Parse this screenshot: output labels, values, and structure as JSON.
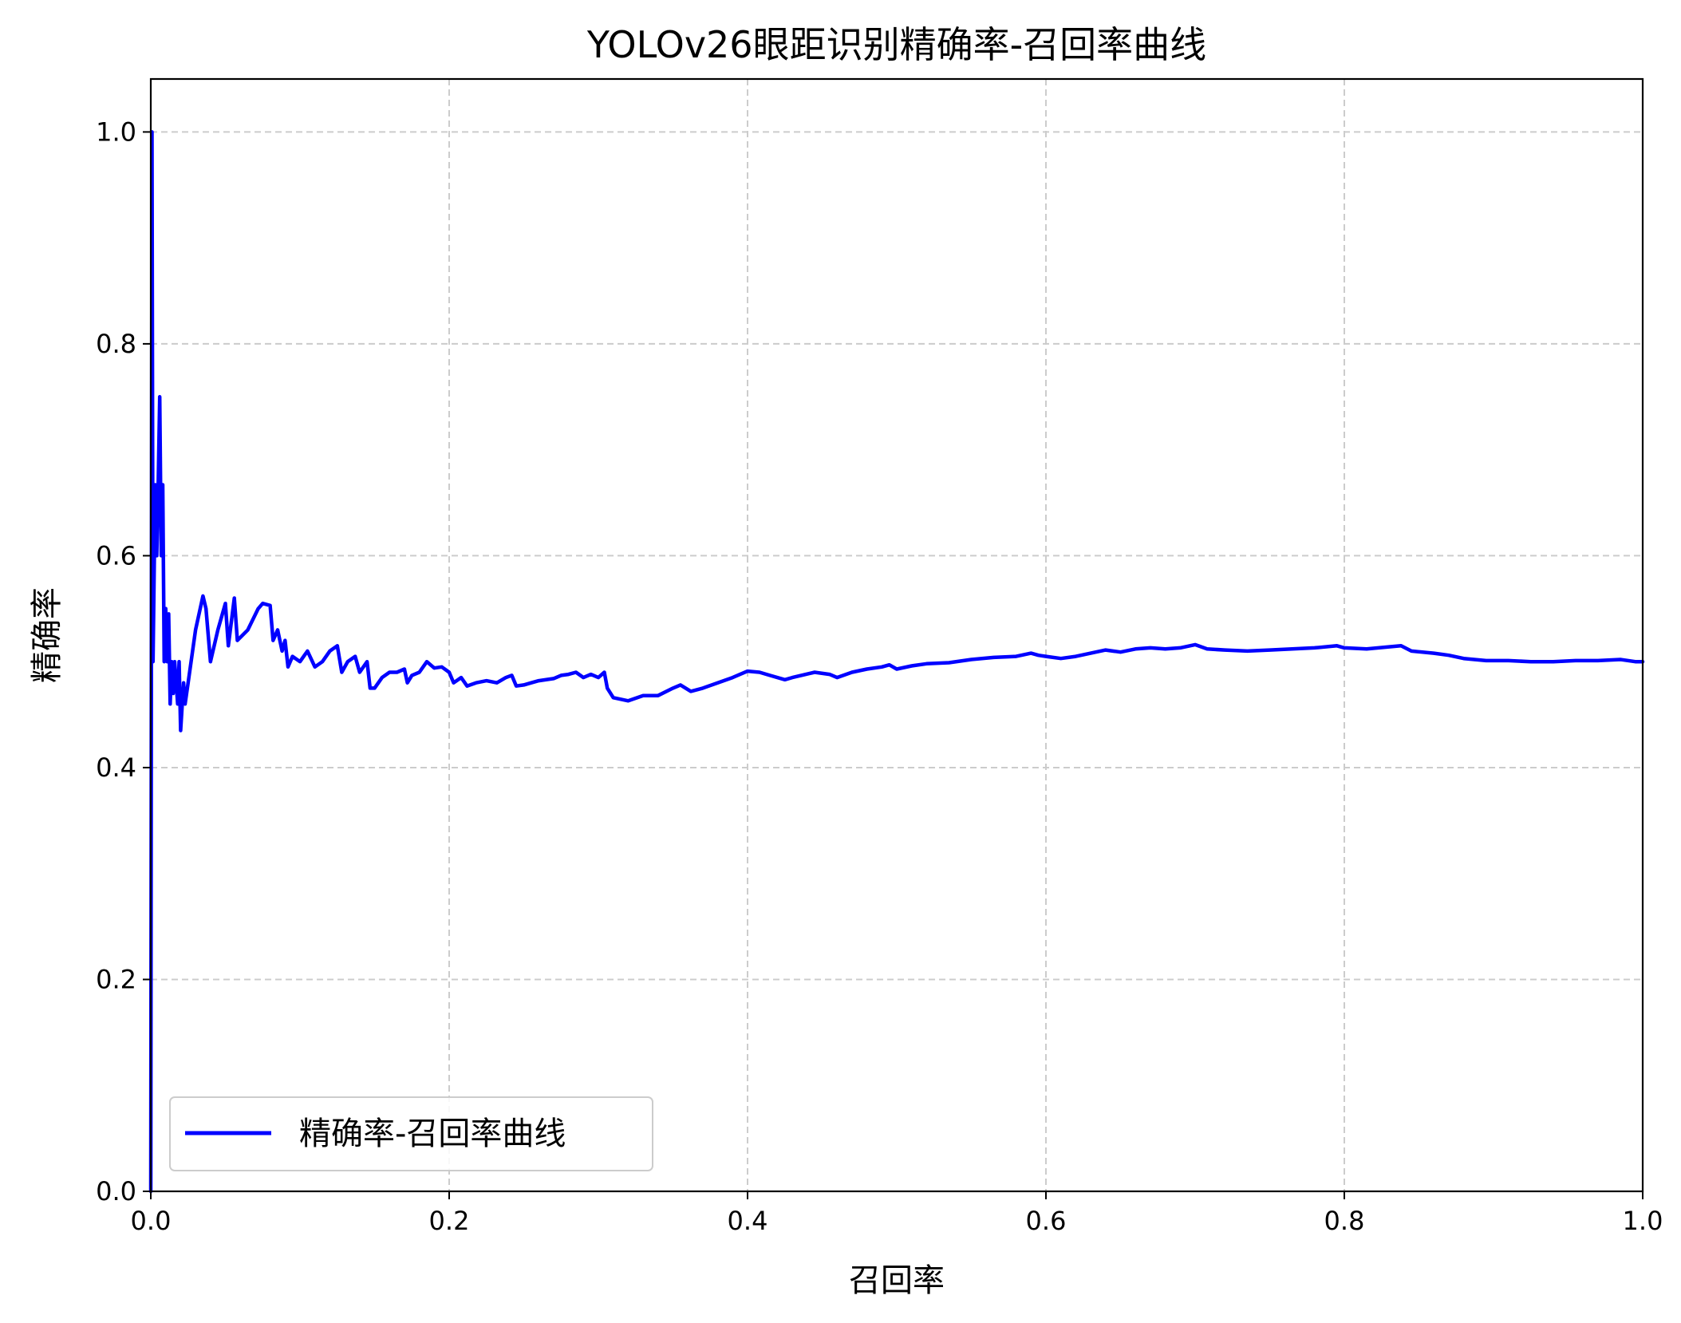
{
  "chart_data": {
    "type": "line",
    "title": "YOLOv26眼距识别精确率-召回率曲线",
    "xlabel": "召回率",
    "ylabel": "精确率",
    "xlim": [
      0.0,
      1.0
    ],
    "ylim": [
      0.0,
      1.05
    ],
    "xticks": [
      0.0,
      0.2,
      0.4,
      0.6,
      0.8,
      1.0
    ],
    "xtick_labels": [
      "0.0",
      "0.2",
      "0.4",
      "0.6",
      "0.8",
      "1.0"
    ],
    "yticks": [
      0.0,
      0.2,
      0.4,
      0.6,
      0.8,
      1.0
    ],
    "ytick_labels": [
      "0.0",
      "0.2",
      "0.4",
      "0.6",
      "0.8",
      "1.0"
    ],
    "grid": true,
    "legend_position": "lower-left",
    "series": [
      {
        "name": "精确率-召回率曲线",
        "color": "#0000ff",
        "points": [
          [
            0.0,
            0.0
          ],
          [
            0.0008,
            1.0
          ],
          [
            0.0015,
            0.5
          ],
          [
            0.003,
            0.667
          ],
          [
            0.004,
            0.6
          ],
          [
            0.005,
            0.667
          ],
          [
            0.006,
            0.75
          ],
          [
            0.007,
            0.6
          ],
          [
            0.008,
            0.667
          ],
          [
            0.009,
            0.5
          ],
          [
            0.01,
            0.55
          ],
          [
            0.011,
            0.5
          ],
          [
            0.012,
            0.545
          ],
          [
            0.013,
            0.46
          ],
          [
            0.014,
            0.5
          ],
          [
            0.015,
            0.47
          ],
          [
            0.016,
            0.5
          ],
          [
            0.018,
            0.46
          ],
          [
            0.019,
            0.5
          ],
          [
            0.02,
            0.435
          ],
          [
            0.022,
            0.48
          ],
          [
            0.023,
            0.46
          ],
          [
            0.025,
            0.48
          ],
          [
            0.03,
            0.53
          ],
          [
            0.035,
            0.562
          ],
          [
            0.037,
            0.55
          ],
          [
            0.04,
            0.5
          ],
          [
            0.045,
            0.53
          ],
          [
            0.05,
            0.555
          ],
          [
            0.052,
            0.515
          ],
          [
            0.056,
            0.56
          ],
          [
            0.058,
            0.52
          ],
          [
            0.065,
            0.53
          ],
          [
            0.072,
            0.55
          ],
          [
            0.075,
            0.555
          ],
          [
            0.08,
            0.553
          ],
          [
            0.082,
            0.52
          ],
          [
            0.085,
            0.53
          ],
          [
            0.088,
            0.51
          ],
          [
            0.09,
            0.52
          ],
          [
            0.092,
            0.495
          ],
          [
            0.095,
            0.505
          ],
          [
            0.1,
            0.5
          ],
          [
            0.105,
            0.51
          ],
          [
            0.11,
            0.495
          ],
          [
            0.115,
            0.5
          ],
          [
            0.12,
            0.51
          ],
          [
            0.125,
            0.515
          ],
          [
            0.128,
            0.49
          ],
          [
            0.132,
            0.5
          ],
          [
            0.137,
            0.505
          ],
          [
            0.14,
            0.49
          ],
          [
            0.145,
            0.5
          ],
          [
            0.147,
            0.475
          ],
          [
            0.15,
            0.475
          ],
          [
            0.155,
            0.485
          ],
          [
            0.16,
            0.49
          ],
          [
            0.165,
            0.49
          ],
          [
            0.17,
            0.493
          ],
          [
            0.172,
            0.48
          ],
          [
            0.175,
            0.487
          ],
          [
            0.18,
            0.49
          ],
          [
            0.185,
            0.5
          ],
          [
            0.19,
            0.494
          ],
          [
            0.195,
            0.495
          ],
          [
            0.2,
            0.49
          ],
          [
            0.203,
            0.48
          ],
          [
            0.208,
            0.485
          ],
          [
            0.212,
            0.477
          ],
          [
            0.218,
            0.48
          ],
          [
            0.225,
            0.482
          ],
          [
            0.232,
            0.48
          ],
          [
            0.238,
            0.485
          ],
          [
            0.242,
            0.487
          ],
          [
            0.245,
            0.477
          ],
          [
            0.25,
            0.478
          ],
          [
            0.255,
            0.48
          ],
          [
            0.26,
            0.482
          ],
          [
            0.27,
            0.484
          ],
          [
            0.275,
            0.487
          ],
          [
            0.28,
            0.488
          ],
          [
            0.285,
            0.49
          ],
          [
            0.29,
            0.485
          ],
          [
            0.295,
            0.488
          ],
          [
            0.3,
            0.485
          ],
          [
            0.304,
            0.49
          ],
          [
            0.306,
            0.475
          ],
          [
            0.31,
            0.466
          ],
          [
            0.32,
            0.463
          ],
          [
            0.33,
            0.468
          ],
          [
            0.34,
            0.468
          ],
          [
            0.35,
            0.475
          ],
          [
            0.355,
            0.478
          ],
          [
            0.362,
            0.472
          ],
          [
            0.37,
            0.475
          ],
          [
            0.38,
            0.48
          ],
          [
            0.39,
            0.485
          ],
          [
            0.395,
            0.488
          ],
          [
            0.4,
            0.491
          ],
          [
            0.408,
            0.49
          ],
          [
            0.415,
            0.487
          ],
          [
            0.425,
            0.483
          ],
          [
            0.43,
            0.485
          ],
          [
            0.445,
            0.49
          ],
          [
            0.455,
            0.488
          ],
          [
            0.46,
            0.485
          ],
          [
            0.47,
            0.49
          ],
          [
            0.48,
            0.493
          ],
          [
            0.49,
            0.495
          ],
          [
            0.495,
            0.497
          ],
          [
            0.5,
            0.493
          ],
          [
            0.51,
            0.496
          ],
          [
            0.52,
            0.498
          ],
          [
            0.535,
            0.499
          ],
          [
            0.55,
            0.502
          ],
          [
            0.565,
            0.504
          ],
          [
            0.58,
            0.505
          ],
          [
            0.59,
            0.508
          ],
          [
            0.595,
            0.506
          ],
          [
            0.6,
            0.505
          ],
          [
            0.61,
            0.503
          ],
          [
            0.62,
            0.505
          ],
          [
            0.63,
            0.508
          ],
          [
            0.64,
            0.511
          ],
          [
            0.65,
            0.509
          ],
          [
            0.66,
            0.512
          ],
          [
            0.67,
            0.513
          ],
          [
            0.68,
            0.512
          ],
          [
            0.69,
            0.513
          ],
          [
            0.7,
            0.516
          ],
          [
            0.708,
            0.512
          ],
          [
            0.72,
            0.511
          ],
          [
            0.735,
            0.51
          ],
          [
            0.75,
            0.511
          ],
          [
            0.765,
            0.512
          ],
          [
            0.78,
            0.513
          ],
          [
            0.795,
            0.515
          ],
          [
            0.8,
            0.513
          ],
          [
            0.815,
            0.512
          ],
          [
            0.83,
            0.514
          ],
          [
            0.838,
            0.515
          ],
          [
            0.845,
            0.51
          ],
          [
            0.86,
            0.508
          ],
          [
            0.87,
            0.506
          ],
          [
            0.88,
            0.503
          ],
          [
            0.895,
            0.501
          ],
          [
            0.91,
            0.501
          ],
          [
            0.925,
            0.5
          ],
          [
            0.94,
            0.5
          ],
          [
            0.955,
            0.501
          ],
          [
            0.97,
            0.501
          ],
          [
            0.985,
            0.502
          ],
          [
            0.995,
            0.5
          ],
          [
            1.0,
            0.5
          ]
        ]
      }
    ]
  }
}
